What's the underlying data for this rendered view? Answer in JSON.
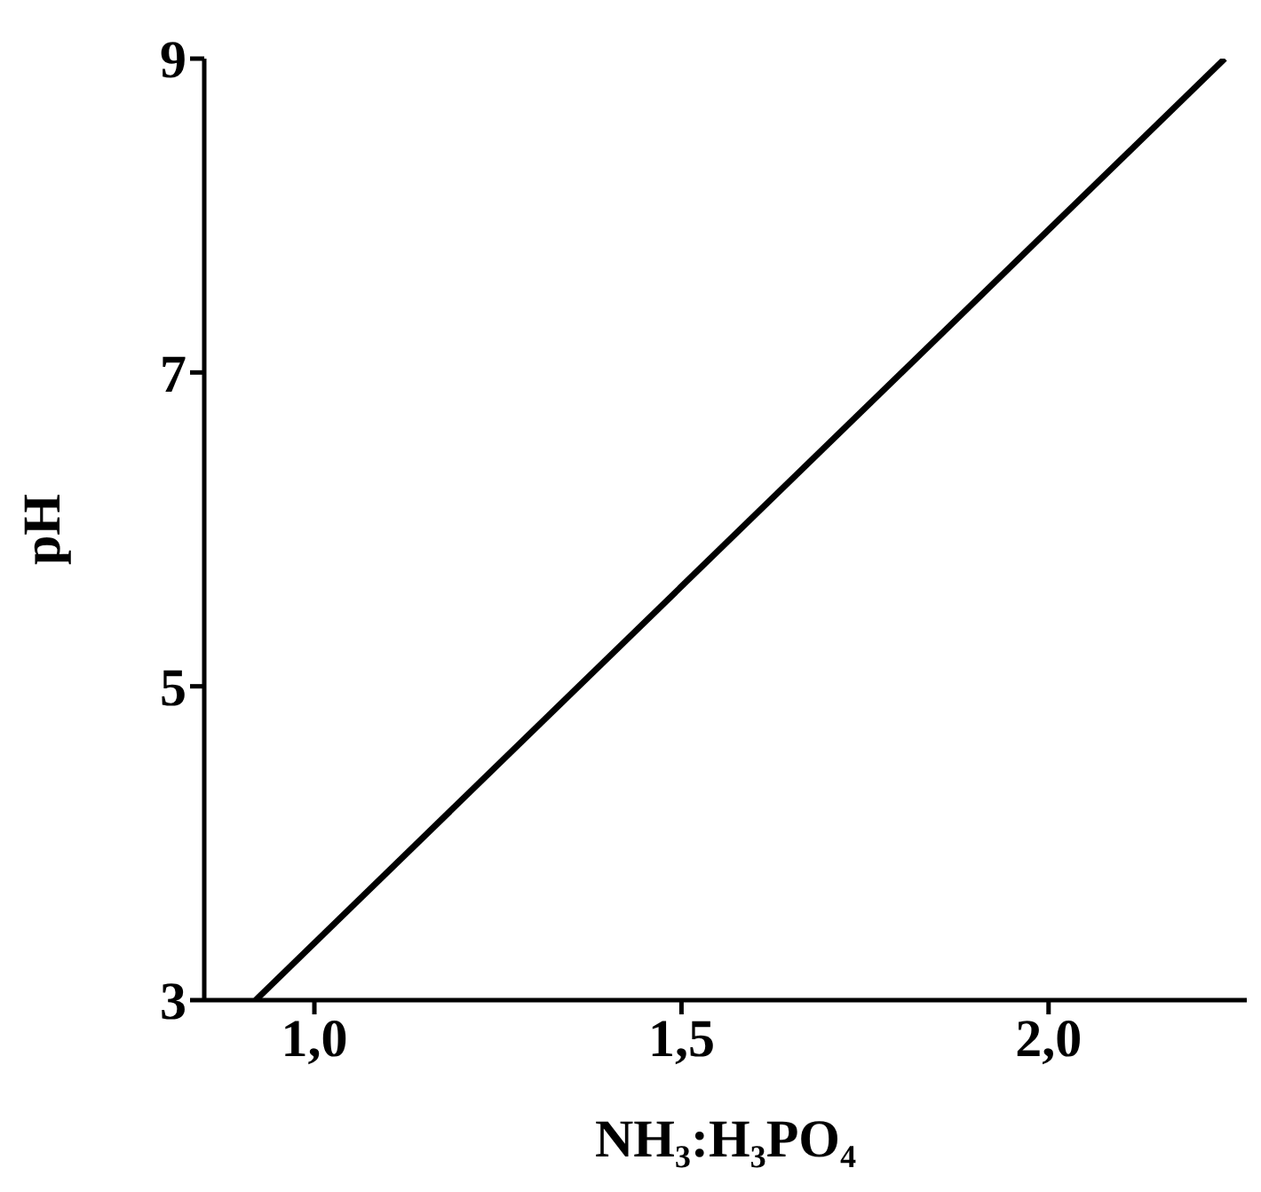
{
  "chart_data": {
    "type": "line",
    "xlabel": "NH₃:H₃PO₄",
    "ylabel": "pH",
    "x": [
      0.92,
      2.24
    ],
    "series": [
      {
        "color": "#000000",
        "values": [
          3,
          9
        ]
      }
    ],
    "xlim": [
      0.85,
      2.27
    ],
    "xticks": [
      {
        "value": 1,
        "label": "1,0"
      },
      {
        "value": 1.5,
        "label": "1,5"
      },
      {
        "value": 2,
        "label": "2,0"
      }
    ],
    "ylim": [
      3,
      9
    ],
    "yticks": [
      3,
      5,
      7,
      9
    ],
    "grid": false,
    "legend": false,
    "marker": "none",
    "line_style": "solid"
  }
}
